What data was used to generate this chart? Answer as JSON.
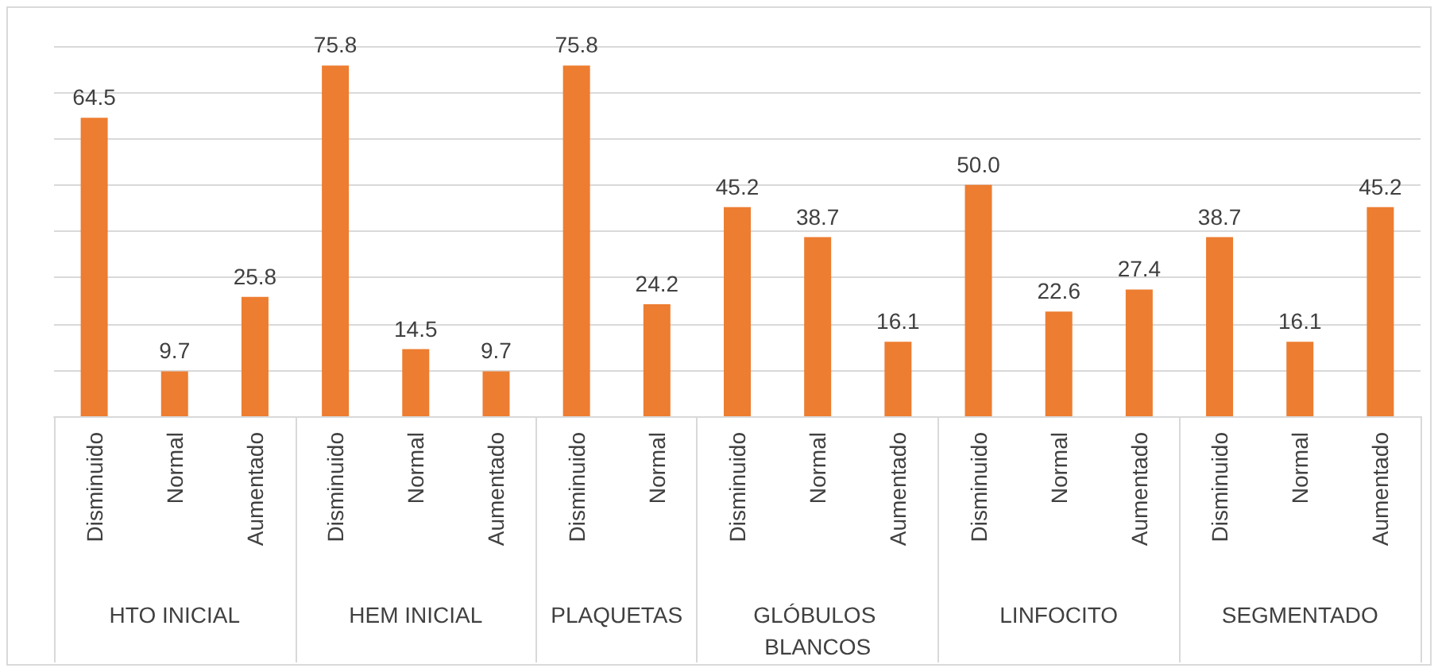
{
  "chart_data": {
    "type": "bar",
    "categories": [
      "Disminuido",
      "Normal",
      "Aumentado",
      "Disminuido",
      "Normal",
      "Aumentado",
      "Disminuido",
      "Normal",
      "Disminuido",
      "Normal",
      "Aumentado",
      "Disminuido",
      "Normal",
      "Aumentado",
      "Disminuido",
      "Normal",
      "Aumentado"
    ],
    "series": [
      {
        "color": "#ed7d31",
        "values": [
          64.5,
          9.7,
          25.8,
          null,
          null,
          null,
          null,
          null,
          null,
          null,
          null,
          null,
          null,
          null,
          null,
          null,
          null
        ],
        "value_labels": [
          "64.5",
          "9.7",
          "25.8",
          null,
          null,
          null,
          null,
          null,
          null,
          null,
          null,
          null,
          null,
          null,
          null,
          null,
          null
        ]
      },
      {
        "color": "#ed7d31",
        "values": [
          null,
          null,
          null,
          75.8,
          14.5,
          9.7,
          null,
          null,
          null,
          null,
          null,
          null,
          null,
          null,
          null,
          null,
          null
        ],
        "value_labels": [
          null,
          null,
          null,
          "75.8",
          "14.5",
          "9.7",
          null,
          null,
          null,
          null,
          null,
          null,
          null,
          null,
          null,
          null,
          null
        ]
      },
      {
        "color": "#ed7d31",
        "values": [
          null,
          null,
          null,
          null,
          null,
          null,
          75.8,
          24.2,
          null,
          null,
          null,
          null,
          null,
          null,
          null,
          null,
          null
        ],
        "value_labels": [
          null,
          null,
          null,
          null,
          null,
          null,
          "75.8",
          "24.2",
          null,
          null,
          null,
          null,
          null,
          null,
          null,
          null,
          null
        ]
      },
      {
        "color": "#ed7d31",
        "values": [
          null,
          null,
          null,
          null,
          null,
          null,
          null,
          null,
          45.2,
          38.7,
          16.1,
          null,
          null,
          null,
          null,
          null,
          null
        ],
        "value_labels": [
          null,
          null,
          null,
          null,
          null,
          null,
          null,
          null,
          "45.2",
          "38.7",
          "16.1",
          null,
          null,
          null,
          null,
          null,
          null
        ]
      },
      {
        "color": "#ed7d31",
        "values": [
          null,
          null,
          null,
          null,
          null,
          null,
          null,
          null,
          null,
          null,
          null,
          50.0,
          22.6,
          27.4,
          null,
          null,
          null
        ],
        "value_labels": [
          null,
          null,
          null,
          null,
          null,
          null,
          null,
          null,
          null,
          null,
          null,
          "50.0",
          "22.6",
          "27.4",
          null,
          null,
          null
        ]
      },
      {
        "color": "#ed7d31",
        "values": [
          null,
          null,
          null,
          null,
          null,
          null,
          null,
          null,
          null,
          null,
          null,
          null,
          null,
          null,
          38.7,
          16.1,
          45.2
        ],
        "value_labels": [
          null,
          null,
          null,
          null,
          null,
          null,
          null,
          null,
          null,
          null,
          null,
          null,
          null,
          null,
          "38.7",
          "16.1",
          "45.2"
        ]
      }
    ],
    "ylim": [
      0,
      80
    ],
    "yticks": [
      {
        "value": 0,
        "label": null
      },
      {
        "value": 10,
        "label": null
      },
      {
        "value": 20,
        "label": null
      },
      {
        "value": 30,
        "label": null
      },
      {
        "value": 40,
        "label": null
      },
      {
        "value": 50,
        "label": null
      },
      {
        "value": 60,
        "label": null
      },
      {
        "value": 70,
        "label": null
      },
      {
        "value": 80,
        "label": null
      }
    ],
    "annotations": [
      "HTO INICIAL",
      "HEM INICIAL",
      "PLAQUETAS",
      "GLÓBULOS BLANCOS",
      "LINFOCITO",
      "SEGMENTADO"
    ],
    "tick_labels": "x",
    "grid": "y"
  }
}
